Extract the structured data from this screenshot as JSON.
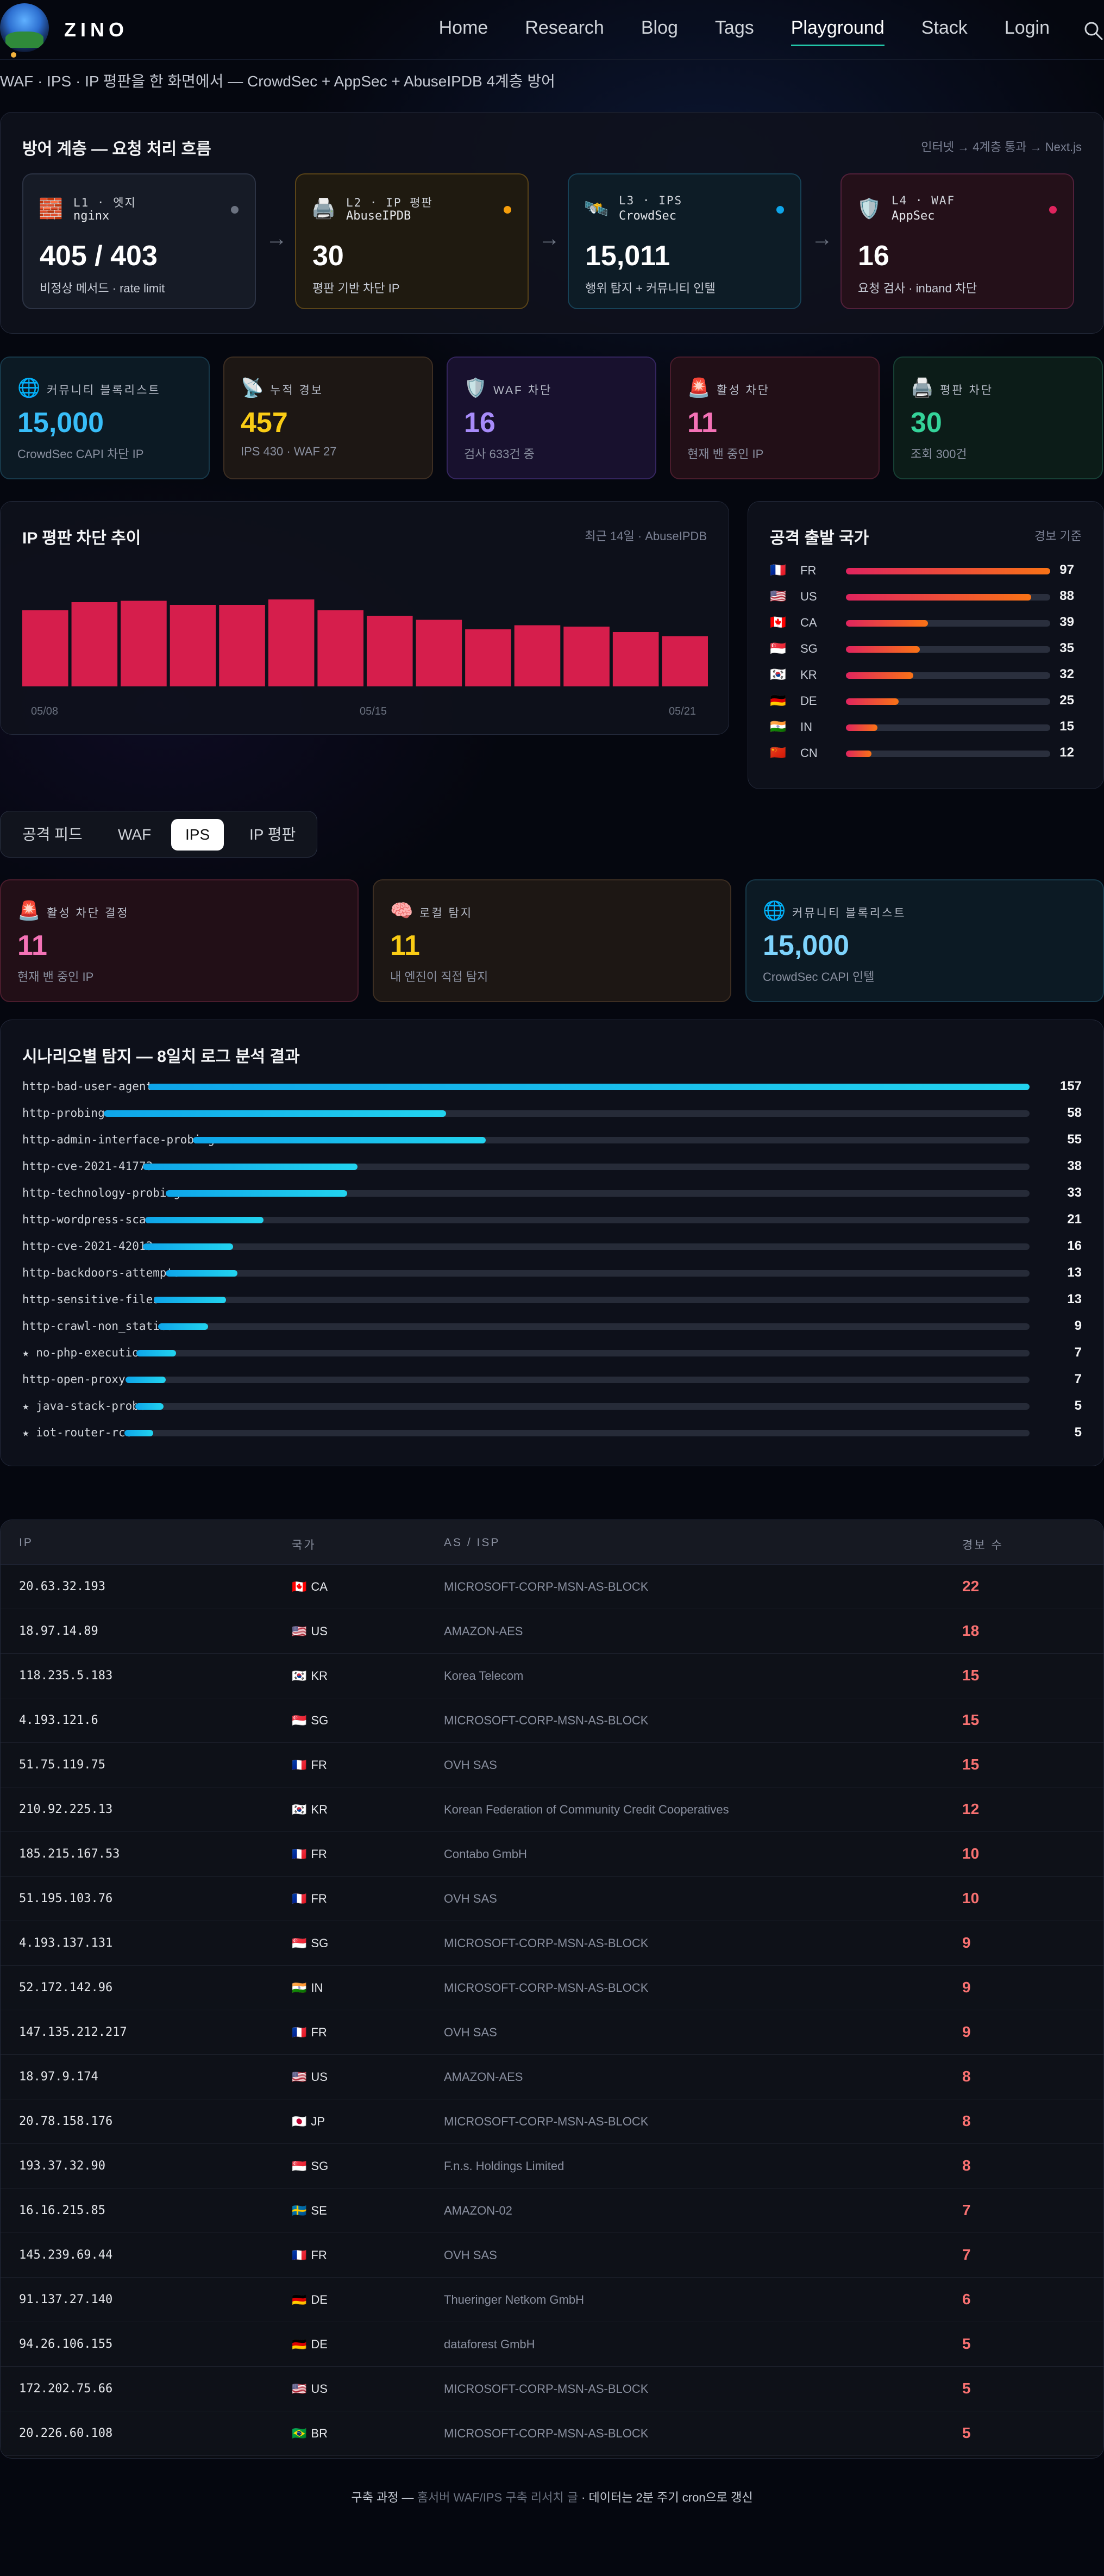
{
  "nav": {
    "brand": "ZINO",
    "items": [
      "Home",
      "Research",
      "Blog",
      "Tags",
      "Playground",
      "Stack",
      "Login"
    ],
    "active": "Playground"
  },
  "subtitle": "WAF · IPS · IP 평판을 한 화면에서 — CrowdSec + AppSec + AbuseIPDB 4계층 방어",
  "flow": {
    "title": "방어 계층 — 요청 처리 흐름",
    "meta": "인터넷 → 4계층 통과 → Next.js",
    "layers": [
      {
        "label": "L1 · 엣지",
        "sub": "nginx",
        "value": "405 / 403",
        "desc": "비정상 메서드 · rate limit",
        "icon": "brick-icon",
        "glyph": "🧱",
        "dot": "#6b7280",
        "bg": "#161b26",
        "border": "#2c3344"
      },
      {
        "label": "L2 · IP 평판",
        "sub": "AbuseIPDB",
        "value": "30",
        "desc": "평판 기반 차단 IP",
        "icon": "printer-icon",
        "glyph": "🖨️",
        "dot": "#f59e0b",
        "bg": "#1f1a10",
        "border": "#5a4418"
      },
      {
        "label": "L3 · IPS",
        "sub": "CrowdSec",
        "value": "15,011",
        "desc": "행위 탐지 + 커뮤니티 인텔",
        "icon": "satellite-icon",
        "glyph": "🛰️",
        "dot": "#0ea5e9",
        "bg": "#0d1c26",
        "border": "#174257"
      },
      {
        "label": "L4 · WAF",
        "sub": "AppSec",
        "value": "16",
        "desc": "요청 검사 · inband 차단",
        "icon": "shield-icon",
        "glyph": "🛡️",
        "dot": "#e0245e",
        "bg": "#241019",
        "border": "#52203a"
      }
    ]
  },
  "stats": [
    {
      "label": "커뮤니티 블록리스트",
      "value": "15,000",
      "desc": "CrowdSec CAPI 차단 IP",
      "icon": "globe-icon",
      "glyph": "🌐",
      "color": "#38bdf8",
      "bg": "#0c1a24",
      "border": "#17394a"
    },
    {
      "label": "누적 경보",
      "value": "457",
      "desc": "IPS 430 · WAF 27",
      "icon": "satellite-dish-icon",
      "glyph": "📡",
      "color": "#facc15",
      "bg": "#1d1714",
      "border": "#3d2e22"
    },
    {
      "label": "WAF 차단",
      "value": "16",
      "desc": "검사 633건 중",
      "icon": "shield-icon",
      "glyph": "🛡️",
      "color": "#a78bfa",
      "bg": "#18112e",
      "border": "#34255e"
    },
    {
      "label": "활성 차단",
      "value": "11",
      "desc": "현재 밴 중인 IP",
      "icon": "siren-icon",
      "glyph": "🚨",
      "color": "#f472b6",
      "bg": "#220f17",
      "border": "#4a1c2c"
    },
    {
      "label": "평판 차단",
      "value": "30",
      "desc": "조회 300건",
      "icon": "printer-icon",
      "glyph": "🖨️",
      "color": "#34d399",
      "bg": "#0c1c18",
      "border": "#174035"
    }
  ],
  "reputation_chart": {
    "title": "IP 평판 차단 추이",
    "meta": "최근 14일 · AbuseIPDB",
    "x_labels": [
      "05/08",
      "05/15",
      "05/21"
    ],
    "chart_data": {
      "type": "bar",
      "categories": [
        "05/08",
        "05/09",
        "05/10",
        "05/11",
        "05/12",
        "05/13",
        "05/14",
        "05/15",
        "05/16",
        "05/17",
        "05/18",
        "05/19",
        "05/20",
        "05/21"
      ],
      "values": [
        56,
        62,
        63,
        60,
        60,
        64,
        56,
        52,
        49,
        42,
        45,
        44,
        40,
        37
      ],
      "ylim": [
        0,
        80
      ],
      "color": "#d61e4c"
    }
  },
  "countries": {
    "title": "공격 출발 국가",
    "meta": "경보 기준",
    "items": [
      {
        "flag": "🇫🇷",
        "code": "FR",
        "count": 97
      },
      {
        "flag": "🇺🇸",
        "code": "US",
        "count": 88
      },
      {
        "flag": "🇨🇦",
        "code": "CA",
        "count": 39
      },
      {
        "flag": "🇸🇬",
        "code": "SG",
        "count": 35
      },
      {
        "flag": "🇰🇷",
        "code": "KR",
        "count": 32
      },
      {
        "flag": "🇩🇪",
        "code": "DE",
        "count": 25
      },
      {
        "flag": "🇮🇳",
        "code": "IN",
        "count": 15
      },
      {
        "flag": "🇨🇳",
        "code": "CN",
        "count": 12
      }
    ],
    "max": 97
  },
  "tabs": {
    "items": [
      "공격 피드",
      "WAF",
      "IPS",
      "IP 평판"
    ],
    "active": "IPS"
  },
  "ips_stats": [
    {
      "label": "활성 차단 결정",
      "value": "11",
      "desc": "현재 밴 중인 IP",
      "icon": "siren-icon",
      "glyph": "🚨",
      "color": "#f472b6",
      "bg": "#220f17",
      "border": "#4a1c2c"
    },
    {
      "label": "로컬 탐지",
      "value": "11",
      "desc": "내 엔진이 직접 탐지",
      "icon": "brain-icon",
      "glyph": "🧠",
      "color": "#facc15",
      "bg": "#1d1714",
      "border": "#3d2e22"
    },
    {
      "label": "커뮤니티 블록리스트",
      "value": "15,000",
      "desc": "CrowdSec CAPI 인텔",
      "icon": "globe-icon",
      "glyph": "🌐",
      "color": "#7dd3fc",
      "bg": "#0c1a24",
      "border": "#17394a"
    }
  ],
  "scenarios": {
    "title": "시나리오별 탐지 — 8일치 로그 분석 결과",
    "max": 157,
    "items": [
      {
        "name": "http-bad-user-agent",
        "count": 157
      },
      {
        "name": "http-probing",
        "count": 58
      },
      {
        "name": "http-admin-interface-probing",
        "count": 55
      },
      {
        "name": "http-cve-2021-41773",
        "count": 38
      },
      {
        "name": "http-technology-probing",
        "count": 33
      },
      {
        "name": "http-wordpress-scan",
        "count": 21
      },
      {
        "name": "http-cve-2021-42013",
        "count": 16
      },
      {
        "name": "http-backdoors-attempts",
        "count": 13
      },
      {
        "name": "http-sensitive-files",
        "count": 13
      },
      {
        "name": "http-crawl-non_statics",
        "count": 9
      },
      {
        "name": "★ no-php-execution",
        "count": 7
      },
      {
        "name": "http-open-proxy",
        "count": 7
      },
      {
        "name": "★ java-stack-probe",
        "count": 5
      },
      {
        "name": "★ iot-router-rce",
        "count": 5
      }
    ]
  },
  "table": {
    "headers": [
      "IP",
      "국가",
      "AS / ISP",
      "경보 수"
    ],
    "rows": [
      {
        "ip": "20.63.32.193",
        "flag": "🇨🇦",
        "country": "CA",
        "as": "MICROSOFT-CORP-MSN-AS-BLOCK",
        "count": "22"
      },
      {
        "ip": "18.97.14.89",
        "flag": "🇺🇸",
        "country": "US",
        "as": "AMAZON-AES",
        "count": "18"
      },
      {
        "ip": "118.235.5.183",
        "flag": "🇰🇷",
        "country": "KR",
        "as": "Korea Telecom",
        "count": "15"
      },
      {
        "ip": "4.193.121.6",
        "flag": "🇸🇬",
        "country": "SG",
        "as": "MICROSOFT-CORP-MSN-AS-BLOCK",
        "count": "15"
      },
      {
        "ip": "51.75.119.75",
        "flag": "🇫🇷",
        "country": "FR",
        "as": "OVH SAS",
        "count": "15"
      },
      {
        "ip": "210.92.225.13",
        "flag": "🇰🇷",
        "country": "KR",
        "as": "Korean Federation of Community Credit Cooperatives",
        "count": "12"
      },
      {
        "ip": "185.215.167.53",
        "flag": "🇫🇷",
        "country": "FR",
        "as": "Contabo GmbH",
        "count": "10"
      },
      {
        "ip": "51.195.103.76",
        "flag": "🇫🇷",
        "country": "FR",
        "as": "OVH SAS",
        "count": "10"
      },
      {
        "ip": "4.193.137.131",
        "flag": "🇸🇬",
        "country": "SG",
        "as": "MICROSOFT-CORP-MSN-AS-BLOCK",
        "count": "9"
      },
      {
        "ip": "52.172.142.96",
        "flag": "🇮🇳",
        "country": "IN",
        "as": "MICROSOFT-CORP-MSN-AS-BLOCK",
        "count": "9"
      },
      {
        "ip": "147.135.212.217",
        "flag": "🇫🇷",
        "country": "FR",
        "as": "OVH SAS",
        "count": "9"
      },
      {
        "ip": "18.97.9.174",
        "flag": "🇺🇸",
        "country": "US",
        "as": "AMAZON-AES",
        "count": "8"
      },
      {
        "ip": "20.78.158.176",
        "flag": "🇯🇵",
        "country": "JP",
        "as": "MICROSOFT-CORP-MSN-AS-BLOCK",
        "count": "8"
      },
      {
        "ip": "193.37.32.90",
        "flag": "🇸🇬",
        "country": "SG",
        "as": "F.n.s. Holdings Limited",
        "count": "8"
      },
      {
        "ip": "16.16.215.85",
        "flag": "🇸🇪",
        "country": "SE",
        "as": "AMAZON-02",
        "count": "7"
      },
      {
        "ip": "145.239.69.44",
        "flag": "🇫🇷",
        "country": "FR",
        "as": "OVH SAS",
        "count": "7"
      },
      {
        "ip": "91.137.27.140",
        "flag": "🇩🇪",
        "country": "DE",
        "as": "Thueringer Netkom GmbH",
        "count": "6"
      },
      {
        "ip": "94.26.106.155",
        "flag": "🇩🇪",
        "country": "DE",
        "as": "dataforest GmbH",
        "count": "5"
      },
      {
        "ip": "172.202.75.66",
        "flag": "🇺🇸",
        "country": "US",
        "as": "MICROSOFT-CORP-MSN-AS-BLOCK",
        "count": "5"
      },
      {
        "ip": "20.226.60.108",
        "flag": "🇧🇷",
        "country": "BR",
        "as": "MICROSOFT-CORP-MSN-AS-BLOCK",
        "count": "5"
      }
    ]
  },
  "footer": {
    "prefix": "구축 과정 — ",
    "link": "홈서버 WAF/IPS 구축 리서치 글",
    "suffix": " · 데이터는 2분 주기 cron으로 갱신"
  }
}
